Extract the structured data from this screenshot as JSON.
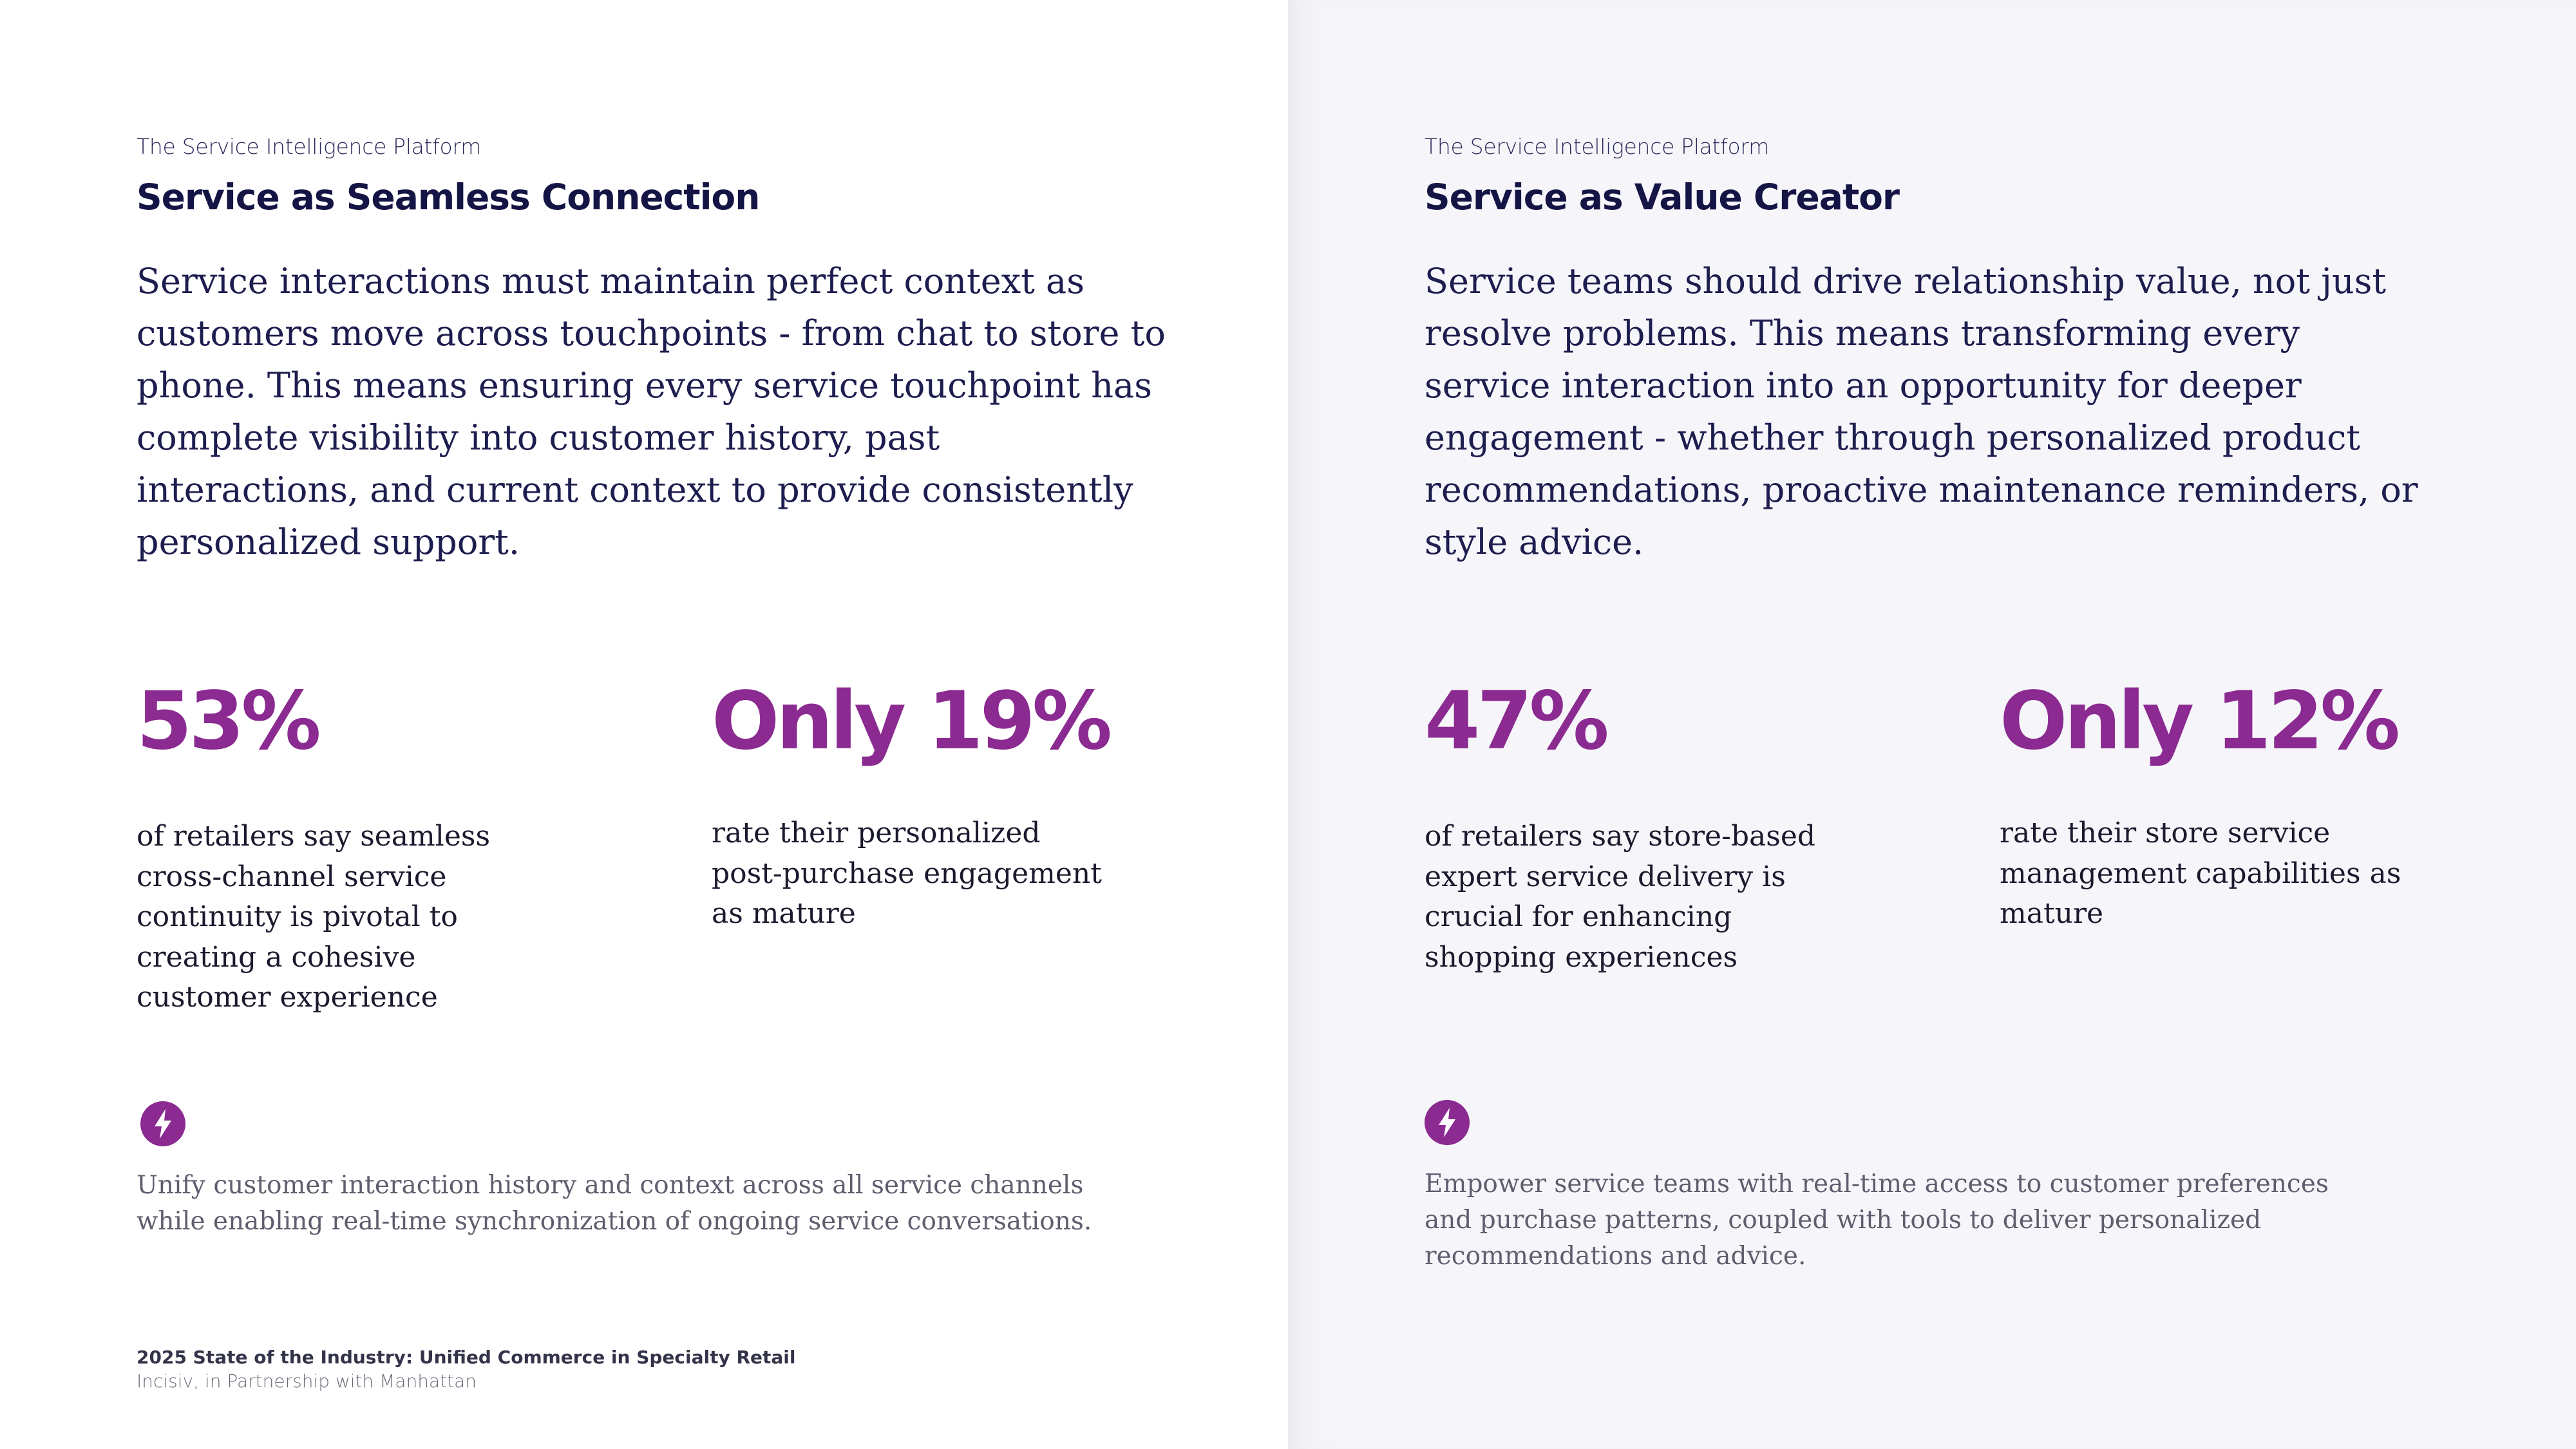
{
  "colors": {
    "accent": "#8b2a91",
    "heading": "#141445",
    "body": "#1d1d4f",
    "muted": "#5e5e6e",
    "right_panel_bg": "#f6f6fa"
  },
  "left": {
    "eyebrow": "The Service Intelligence Platform",
    "title": "Service as Seamless Connection",
    "lead": "Service interactions must maintain perfect context as customers move across touchpoints - from chat to store to phone. This means ensuring every service touchpoint has complete visibility into customer history, past interactions, and current context to provide consistently personalized support.",
    "stats": [
      {
        "value": "53%",
        "description": "of retailers say seamless cross-channel service continuity is pivotal to creating a cohesive customer experience"
      },
      {
        "value": "Only 19%",
        "description": "rate their personalized post-purchase engagement as mature"
      }
    ],
    "icon": "lightning-bolt-icon",
    "note": "Unify customer interaction history and context across all service channels while enabling real-time synchronization of ongoing service conversations."
  },
  "right": {
    "eyebrow": "The Service Intelligence Platform",
    "title": "Service as Value Creator",
    "lead": "Service teams should drive relationship value, not just resolve problems. This means transforming every service interaction into an opportunity for deeper engagement - whether through personalized product recommendations, proactive maintenance reminders, or style advice.",
    "stats": [
      {
        "value": "47%",
        "description": "of retailers say store-based expert service delivery is crucial for enhancing shopping experiences"
      },
      {
        "value": "Only 12%",
        "description": "rate their store service management capabilities as mature"
      }
    ],
    "icon": "lightning-bolt-icon",
    "note": "Empower service teams with real-time access to customer preferences and purchase patterns, coupled with tools to deliver personalized recommendations and advice."
  },
  "footer": {
    "title": "2025 State of the Industry: Unified Commerce in Specialty Retail",
    "subtitle": "Incisiv, in Partnership with Manhattan"
  }
}
